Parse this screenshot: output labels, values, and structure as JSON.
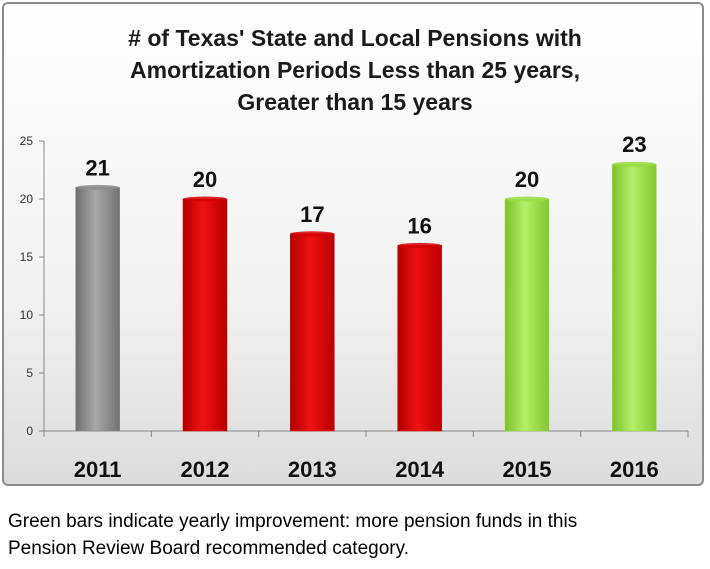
{
  "chart_data": {
    "type": "bar",
    "title_lines": [
      "# of Texas' State and Local Pensions with",
      "Amortization Periods Less than 25 years,",
      "Greater than 15 years"
    ],
    "categories": [
      "2011",
      "2012",
      "2013",
      "2014",
      "2015",
      "2016"
    ],
    "values": [
      21,
      20,
      17,
      16,
      20,
      23
    ],
    "data_labels": [
      "21",
      "20",
      "17",
      "16",
      "20",
      "23"
    ],
    "bar_colors": [
      "#8a8a8a",
      "#d40000",
      "#d40000",
      "#d40000",
      "#99dd44",
      "#99dd44"
    ],
    "ylim": [
      0,
      25
    ],
    "yticks": [
      0,
      5,
      10,
      15,
      20,
      25
    ],
    "ytick_labels": [
      "0",
      "5",
      "10",
      "15",
      "20",
      "25"
    ],
    "grid": false,
    "legend": "none",
    "xlabel": "",
    "ylabel": ""
  },
  "caption": {
    "line1": "Green bars indicate yearly improvement: more pension funds in this",
    "line2": "Pension Review Board recommended category."
  }
}
